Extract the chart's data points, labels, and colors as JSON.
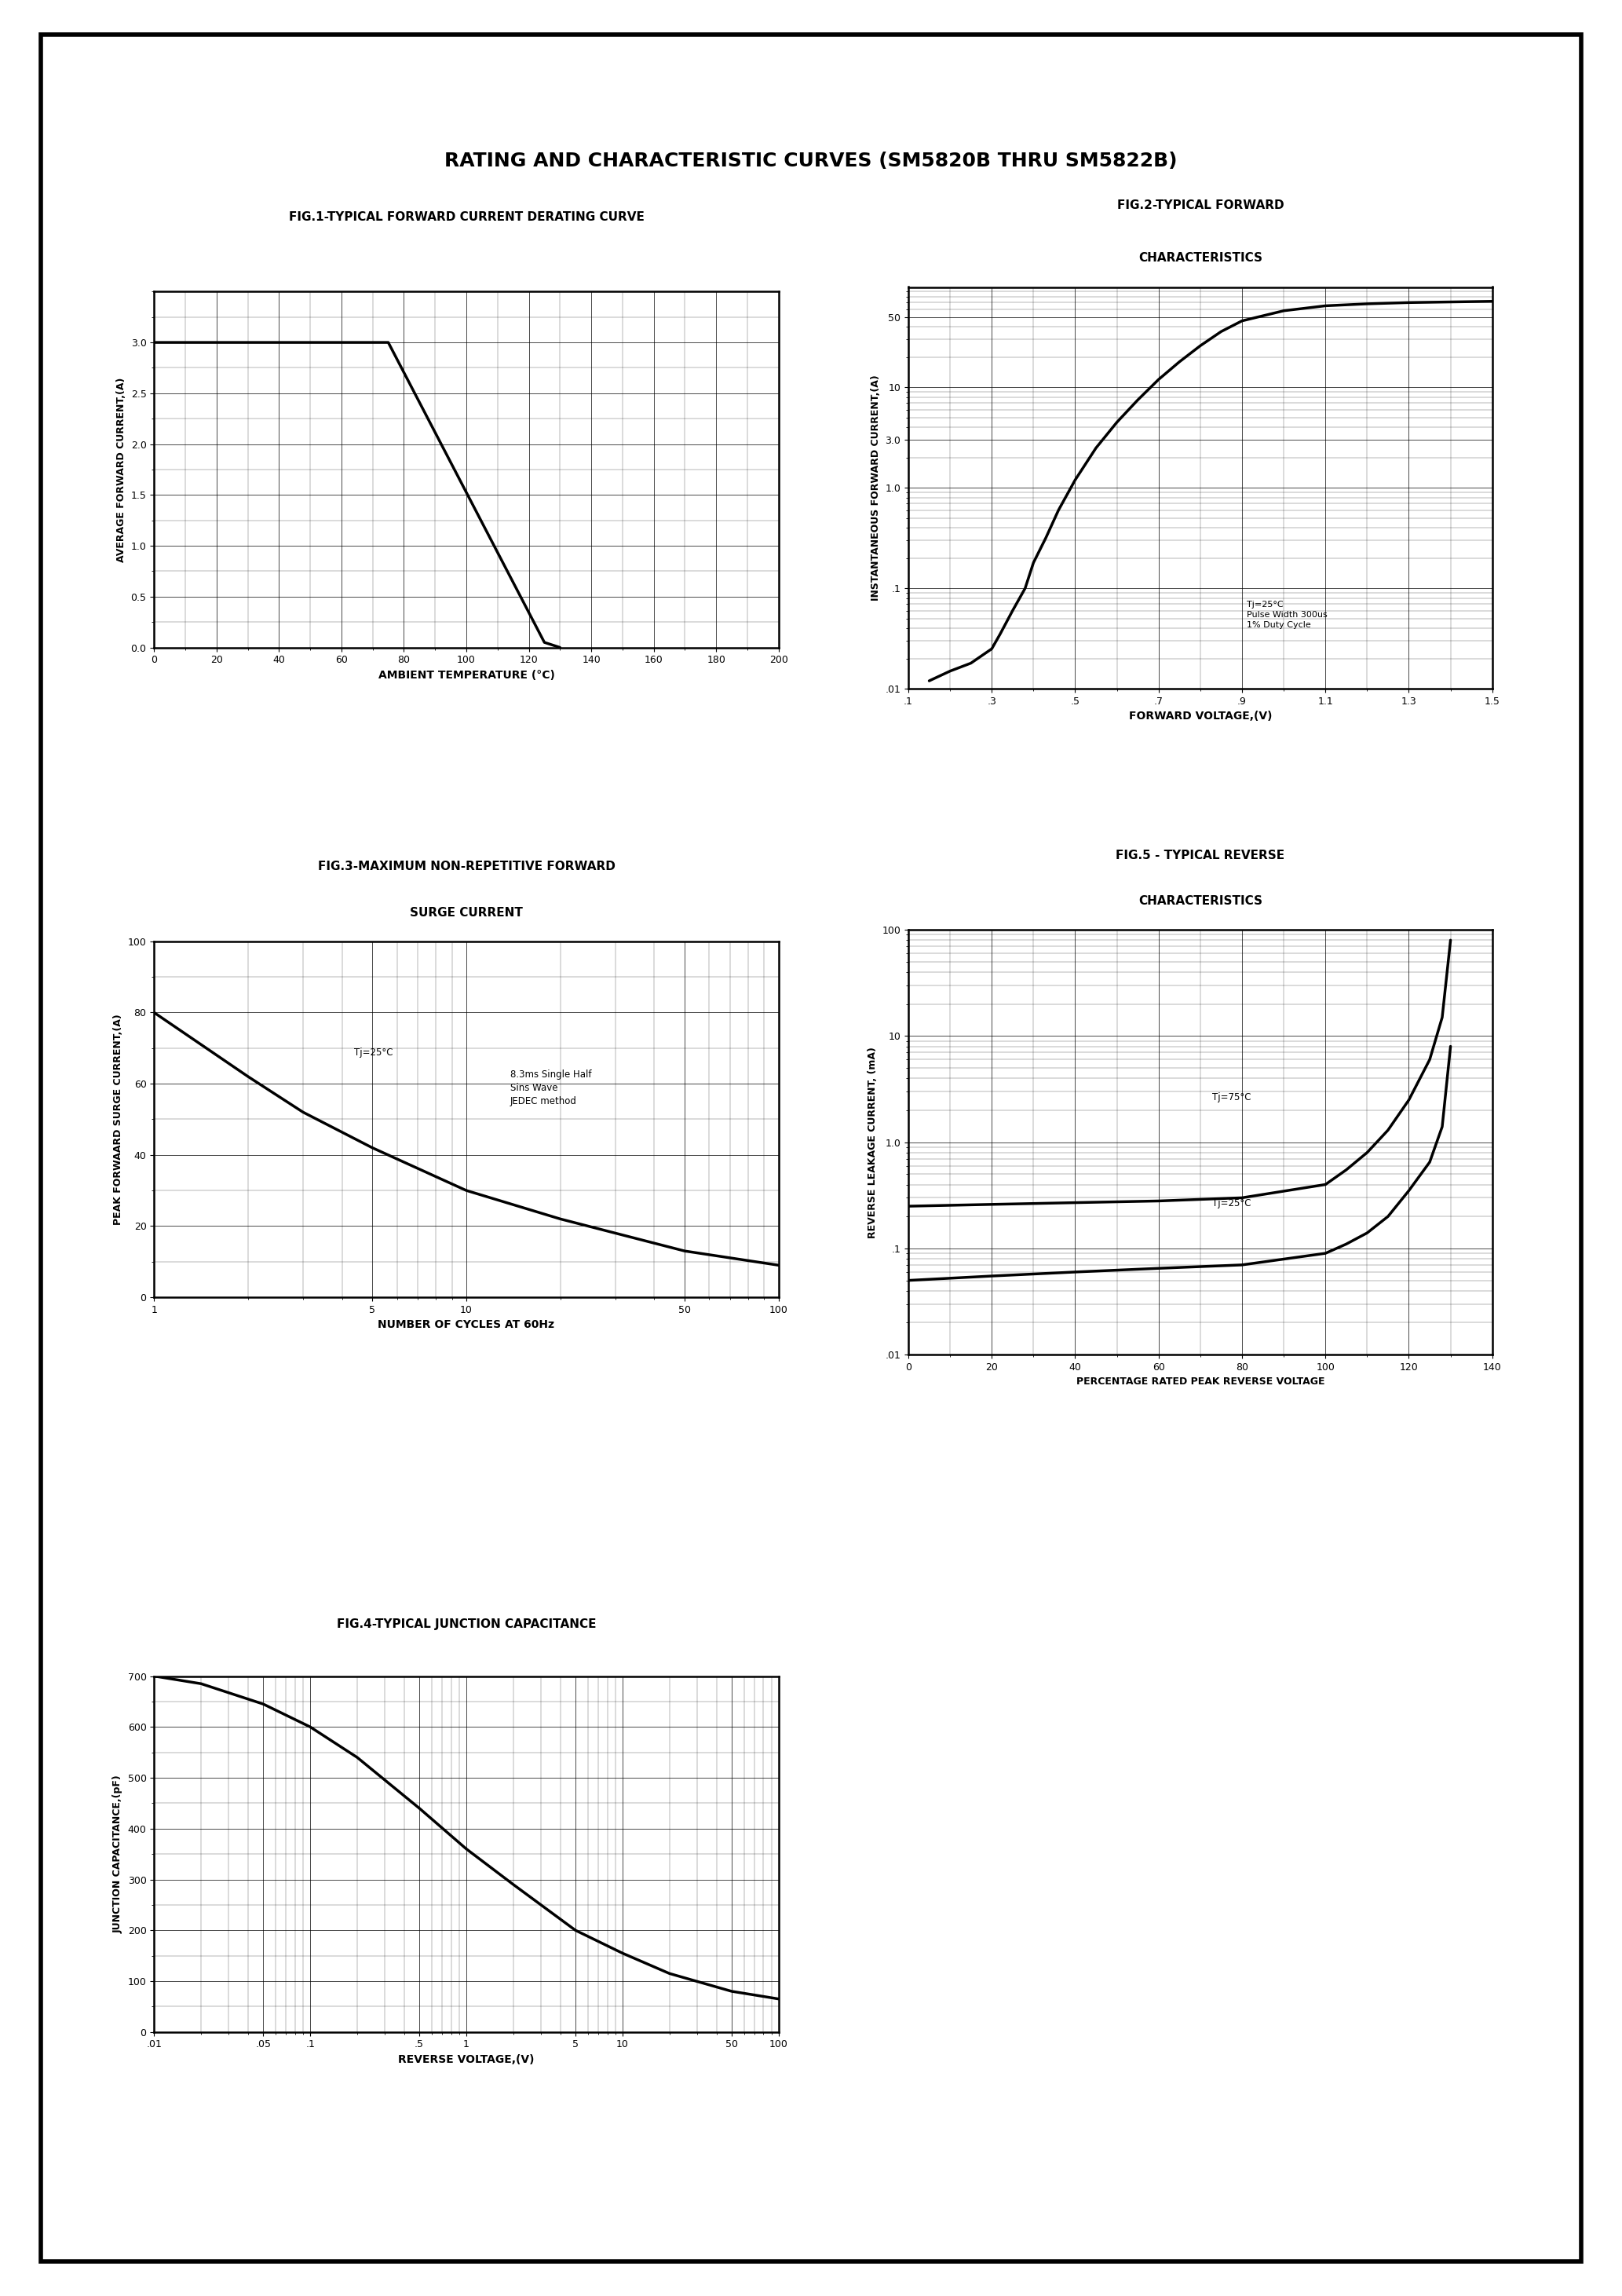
{
  "title": "RATING AND CHARACTERISTIC CURVES (SM5820B THRU SM5822B)",
  "fig1_title": "FIG.1-TYPICAL FORWARD CURRENT DERATING CURVE",
  "fig1_xlabel": "AMBIENT TEMPERATURE (°C)",
  "fig1_ylabel": "AVERAGE FORWARD CURRENT,(A)",
  "fig1_xlim": [
    0,
    200
  ],
  "fig1_ylim": [
    0,
    3.5
  ],
  "fig1_yticks": [
    0,
    0.5,
    1.0,
    1.5,
    2.0,
    2.5,
    3.0
  ],
  "fig1_xticks": [
    0,
    20,
    40,
    60,
    80,
    100,
    120,
    140,
    160,
    180,
    200
  ],
  "fig1_curve_x": [
    0,
    75,
    125,
    130
  ],
  "fig1_curve_y": [
    3.0,
    3.0,
    0.05,
    0.0
  ],
  "fig2_title1": "FIG.2-TYPICAL FORWARD",
  "fig2_title2": "CHARACTERISTICS",
  "fig2_xlabel": "FORWARD VOLTAGE,(V)",
  "fig2_ylabel": "INSTANTANEOUS FORWARD CURRENT,(A)",
  "fig2_annotation": "Tj=25°C\nPulse Width 300us\n1% Duty Cycle",
  "fig2_curve_x": [
    0.15,
    0.2,
    0.25,
    0.3,
    0.32,
    0.35,
    0.38,
    0.4,
    0.43,
    0.46,
    0.5,
    0.55,
    0.6,
    0.65,
    0.7,
    0.75,
    0.8,
    0.85,
    0.9,
    1.0,
    1.1,
    1.2,
    1.3,
    1.5
  ],
  "fig2_curve_y": [
    0.012,
    0.015,
    0.018,
    0.025,
    0.035,
    0.06,
    0.1,
    0.18,
    0.32,
    0.6,
    1.2,
    2.5,
    4.5,
    7.5,
    12.0,
    18.0,
    26.0,
    36.0,
    46.0,
    58.0,
    65.0,
    68.0,
    70.0,
    72.0
  ],
  "fig3_title1": "FIG.3-MAXIMUM NON-REPETITIVE FORWARD",
  "fig3_title2": "SURGE CURRENT",
  "fig3_xlabel": "NUMBER OF CYCLES AT 60Hz",
  "fig3_ylabel": "PEAK FORWAARD SURGE CURRENT,(A)",
  "fig3_annotation1": "Tj=25°C",
  "fig3_annotation2": "8.3ms Single Half\nSins Wave\nJEDEC method",
  "fig3_curve_x": [
    1,
    2,
    3,
    5,
    10,
    20,
    50,
    100
  ],
  "fig3_curve_y": [
    80,
    62,
    52,
    42,
    30,
    22,
    13,
    9
  ],
  "fig4_title": "FIG.4-TYPICAL JUNCTION CAPACITANCE",
  "fig4_xlabel": "REVERSE VOLTAGE,(V)",
  "fig4_ylabel": "JUNCTION CAPACITANCE,(pF)",
  "fig4_curve_x": [
    0.01,
    0.02,
    0.05,
    0.1,
    0.2,
    0.5,
    1,
    2,
    5,
    10,
    20,
    50,
    100
  ],
  "fig4_curve_y": [
    700,
    685,
    645,
    600,
    540,
    440,
    360,
    290,
    200,
    155,
    115,
    80,
    65
  ],
  "fig5_title1": "FIG.5 - TYPICAL REVERSE",
  "fig5_title2": "CHARACTERISTICS",
  "fig5_xlabel": "PERCENTAGE RATED PEAK REVERSE VOLTAGE",
  "fig5_ylabel": "REVERSE LEAKAGE CURRENT, (mA)",
  "fig5_annotation1": "Tj=75°C",
  "fig5_annotation2": "Tj=25°C",
  "fig5_curve1_x": [
    0,
    20,
    40,
    60,
    80,
    100,
    105,
    110,
    115,
    120,
    125,
    128,
    130
  ],
  "fig5_curve1_y": [
    0.25,
    0.26,
    0.27,
    0.28,
    0.3,
    0.4,
    0.55,
    0.8,
    1.3,
    2.5,
    6.0,
    15.0,
    80.0
  ],
  "fig5_curve2_x": [
    0,
    20,
    40,
    60,
    80,
    100,
    105,
    110,
    115,
    120,
    125,
    128,
    130
  ],
  "fig5_curve2_y": [
    0.05,
    0.055,
    0.06,
    0.065,
    0.07,
    0.09,
    0.11,
    0.14,
    0.2,
    0.35,
    0.65,
    1.4,
    8.0
  ],
  "background_color": "#ffffff",
  "line_color": "#000000"
}
